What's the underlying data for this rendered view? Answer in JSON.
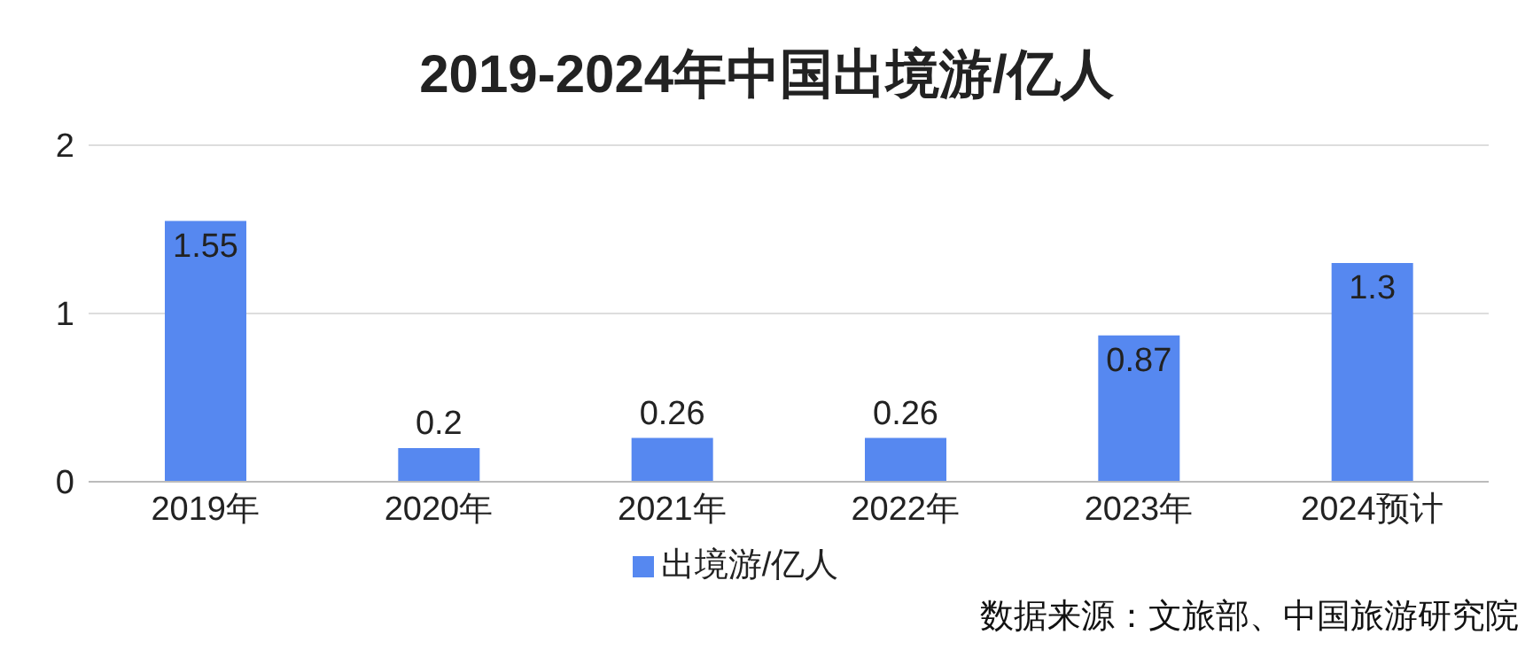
{
  "chart_data": {
    "type": "bar",
    "title": "2019-2024年中国出境游/亿人",
    "categories": [
      "2019年",
      "2020年",
      "2021年",
      "2022年",
      "2023年",
      "2024预计"
    ],
    "series": [
      {
        "name": "出境游/亿人",
        "color": "#5688f0",
        "values": [
          1.55,
          0.2,
          0.26,
          0.26,
          0.87,
          1.3
        ]
      }
    ],
    "ylim": [
      0,
      2
    ],
    "yticks": [
      0,
      1,
      2
    ],
    "grid": "y",
    "legend": "bottom",
    "data_labels": true,
    "annotations": [
      "数据来源：文旅部、中国旅游研究院"
    ]
  }
}
